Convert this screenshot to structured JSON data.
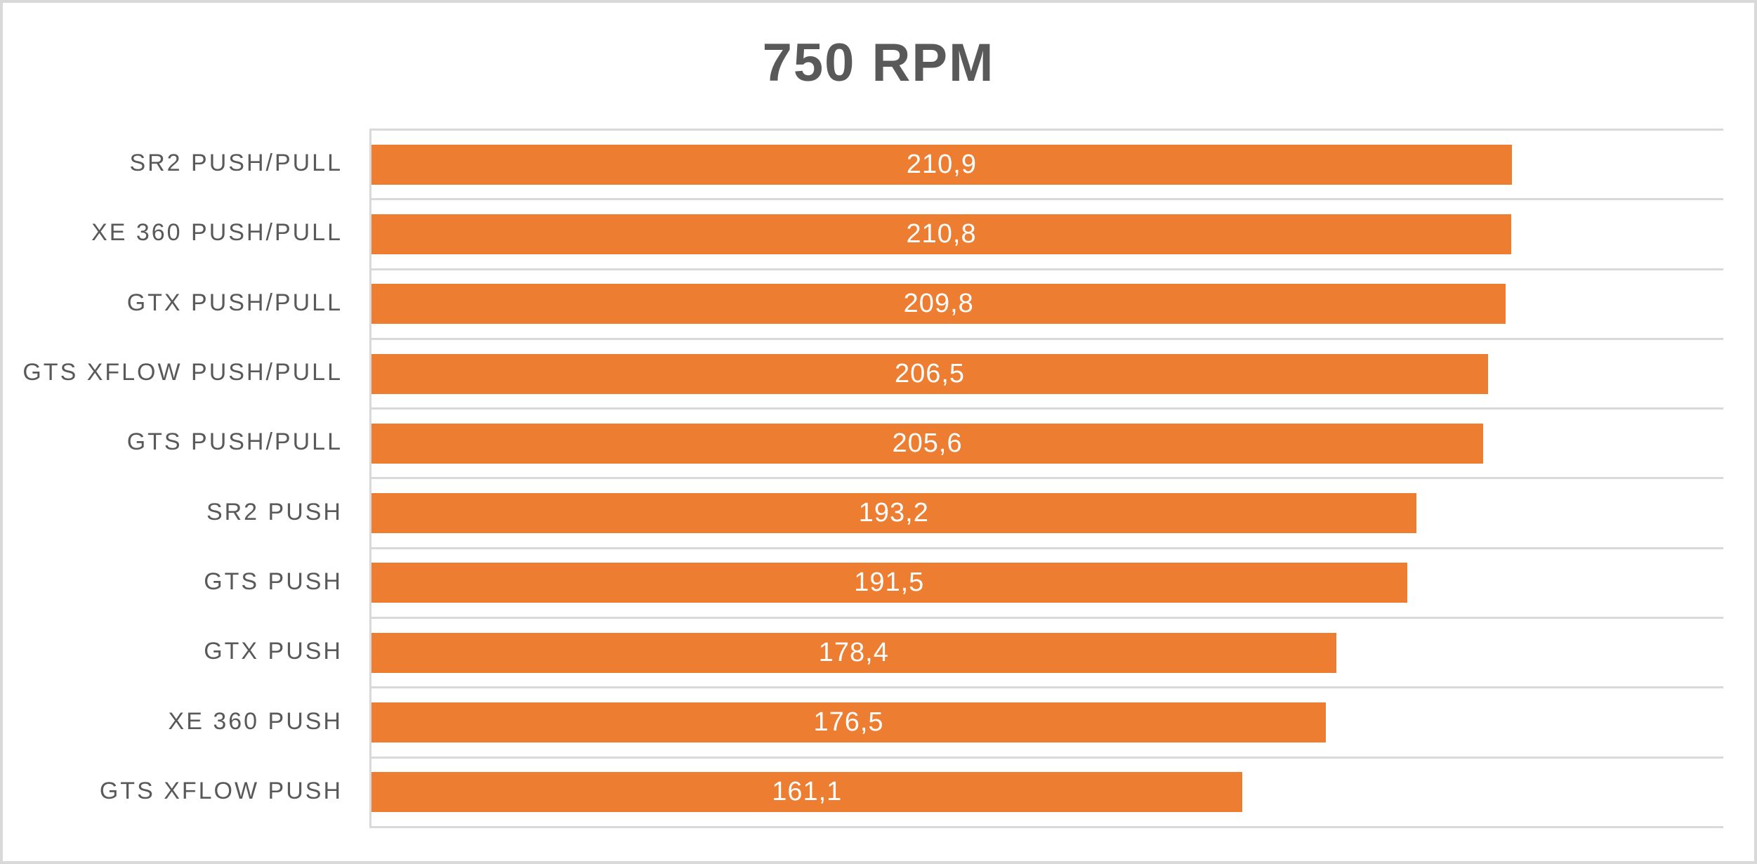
{
  "chart_data": {
    "type": "bar",
    "orientation": "horizontal",
    "title": "750 RPM",
    "categories": [
      "SR2 PUSH/PULL",
      "XE 360 PUSH/PULL",
      "GTX PUSH/PULL",
      "GTS XFLOW PUSH/PULL",
      "GTS PUSH/PULL",
      "SR2 PUSH",
      "GTS PUSH",
      "GTX PUSH",
      "XE 360 PUSH",
      "GTS XFLOW PUSH"
    ],
    "values": [
      210.9,
      210.8,
      209.8,
      206.5,
      205.6,
      193.2,
      191.5,
      178.4,
      176.5,
      161.1
    ],
    "value_labels": [
      "210,9",
      "210,8",
      "209,8",
      "206,5",
      "205,6",
      "193,2",
      "191,5",
      "178,4",
      "176,5",
      "161,1"
    ],
    "xlabel": "",
    "ylabel": "",
    "xlim": [
      0,
      250
    ],
    "grid": "horizontal-category-boundaries",
    "legend": "none",
    "value_label_position": "center-of-bar",
    "colors": {
      "bar": "#ED7D31",
      "value_label": "#FFFFFF",
      "title": "#595959",
      "category_label": "#595959",
      "gridline": "#D9D9D9",
      "border": "#D9D9D9",
      "background": "#FFFFFF"
    }
  }
}
